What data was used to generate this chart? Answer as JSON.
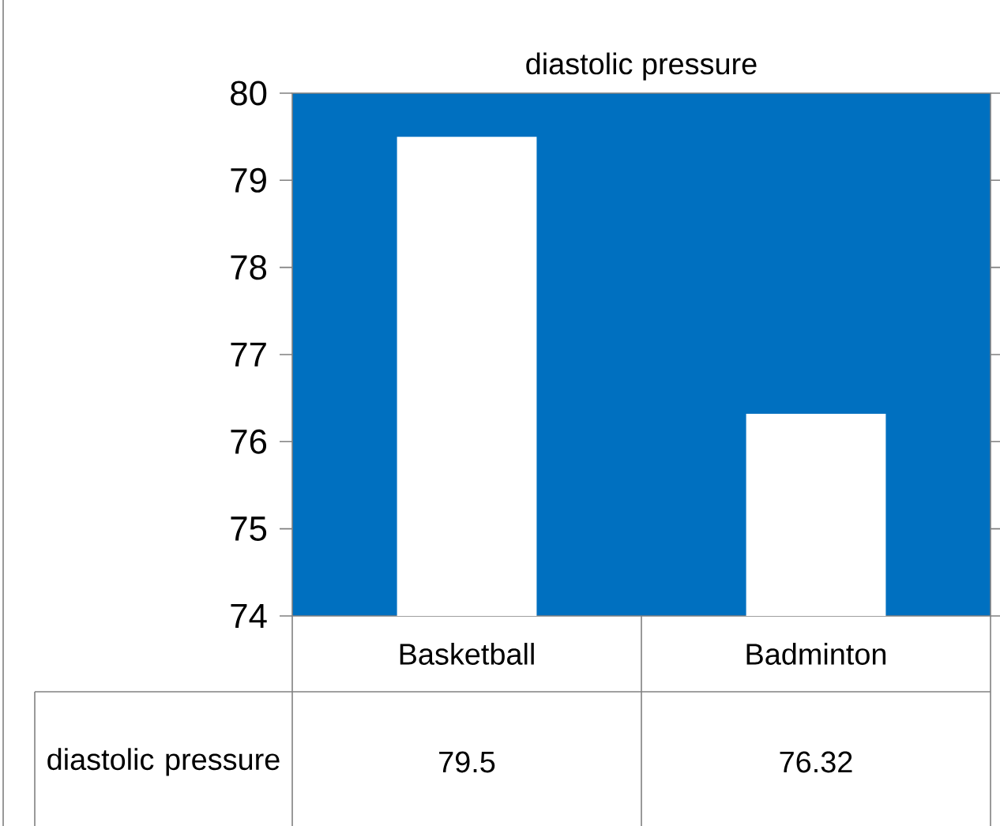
{
  "chart_data": {
    "type": "bar",
    "title": "diastolic pressure",
    "categories": [
      "Basketball",
      "Badminton"
    ],
    "series": [
      {
        "name": "diastolic pressure",
        "color": "#ffffff",
        "values": [
          79.5,
          76.32
        ]
      }
    ],
    "ylim": [
      74,
      80
    ],
    "yticks": [
      74,
      75,
      76,
      77,
      78,
      79,
      80
    ],
    "data_labels": true
  }
}
